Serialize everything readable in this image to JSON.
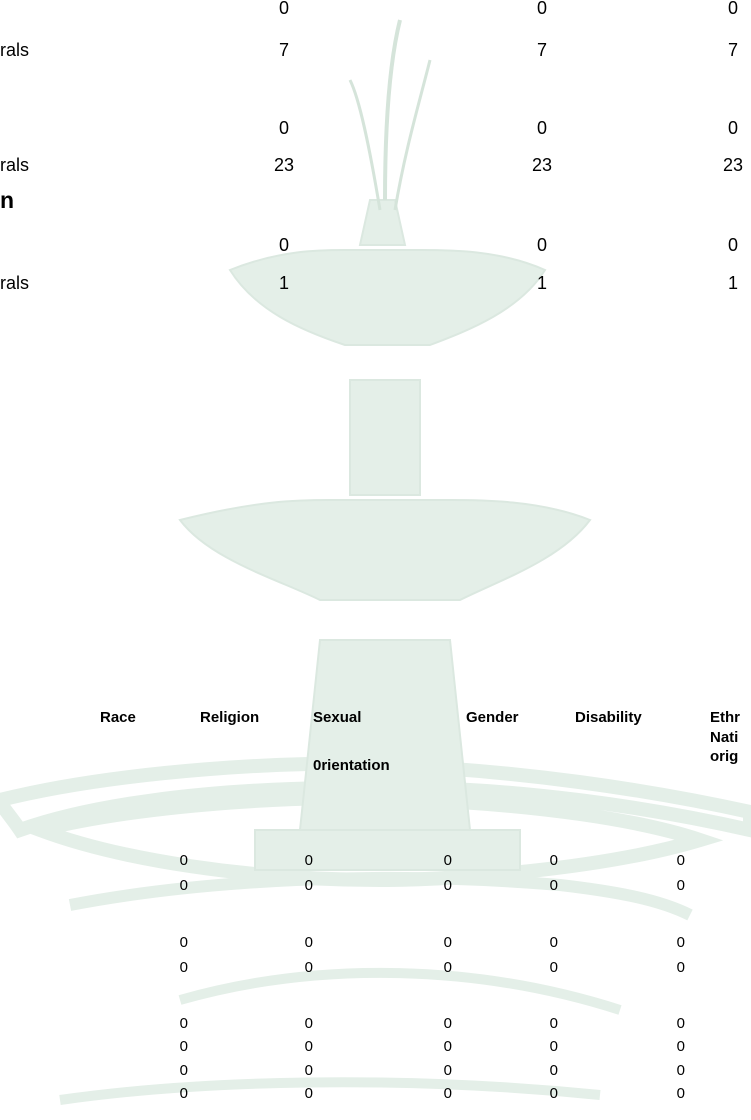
{
  "summary": {
    "rows": [
      {
        "values": [
          0,
          0,
          0
        ]
      },
      {
        "label": "rals",
        "values": [
          7,
          7,
          7
        ]
      },
      {
        "values": [
          0,
          0,
          0
        ]
      },
      {
        "label": "rals",
        "values": [
          23,
          23,
          23
        ]
      },
      {
        "values": [
          0,
          0,
          0
        ]
      },
      {
        "label": "rals",
        "values": [
          1,
          1,
          1
        ]
      }
    ],
    "heading": "n"
  },
  "table": {
    "headers": [
      [
        "Race"
      ],
      [
        "Religion"
      ],
      [
        "Sexual",
        "0rientation"
      ],
      [
        "Gender"
      ],
      [
        "Disability"
      ],
      [
        "Ethr",
        "Nati",
        "orig"
      ]
    ],
    "rows": [
      [
        0,
        0,
        0,
        0,
        0
      ],
      [
        0,
        0,
        0,
        0,
        0
      ],
      [
        0,
        0,
        0,
        0,
        0
      ],
      [
        0,
        0,
        0,
        0,
        0
      ],
      [
        0,
        0,
        0,
        0,
        0
      ],
      [
        0,
        0,
        0,
        0,
        0
      ],
      [
        0,
        0,
        0,
        0,
        0
      ],
      [
        0,
        0,
        0,
        0,
        0
      ]
    ]
  }
}
